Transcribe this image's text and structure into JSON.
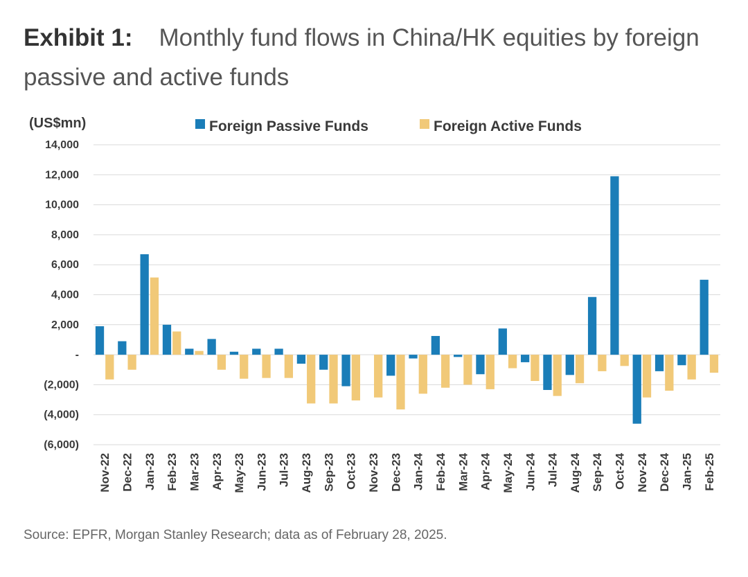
{
  "header": {
    "exhibit_label": "Exhibit 1:",
    "title": "Monthly fund flows in China/HK equities by foreign passive and active funds"
  },
  "source": "Source: EPFR, Morgan Stanley Research; data as of February 28, 2025.",
  "colors": {
    "passive": "#1a7db8",
    "active": "#f1c978",
    "grid": "#d9d9d9"
  },
  "chart_data": {
    "type": "bar",
    "unit_label": "(US$mn)",
    "categories": [
      "Nov-22",
      "Dec-22",
      "Jan-23",
      "Feb-23",
      "Mar-23",
      "Apr-23",
      "May-23",
      "Jun-23",
      "Jul-23",
      "Aug-23",
      "Sep-23",
      "Oct-23",
      "Nov-23",
      "Dec-23",
      "Jan-24",
      "Feb-24",
      "Mar-24",
      "Apr-24",
      "May-24",
      "Jun-24",
      "Jul-24",
      "Aug-24",
      "Sep-24",
      "Oct-24",
      "Nov-24",
      "Dec-24",
      "Jan-25",
      "Feb-25"
    ],
    "series": [
      {
        "name": "Foreign Passive Funds",
        "values": [
          1900,
          900,
          6700,
          2000,
          400,
          1050,
          200,
          400,
          400,
          -600,
          -1000,
          -2100,
          0,
          -1400,
          -250,
          1250,
          -150,
          -1300,
          1750,
          -500,
          -2350,
          -1350,
          3850,
          11900,
          -4600,
          -1100,
          -700,
          5000
        ]
      },
      {
        "name": "Foreign Active Funds",
        "values": [
          -1650,
          -1000,
          5150,
          1550,
          250,
          -1000,
          -1600,
          -1550,
          -1550,
          -3250,
          -3250,
          -3050,
          -2850,
          -3650,
          -2600,
          -2200,
          -2000,
          -2300,
          -900,
          -1750,
          -2750,
          -1900,
          -1100,
          -750,
          -2850,
          -2400,
          -1650,
          -1200
        ]
      }
    ],
    "ylim": [
      -6000,
      14000
    ],
    "yticks": [
      14000,
      12000,
      10000,
      8000,
      6000,
      4000,
      2000,
      0,
      -2000,
      -4000,
      -6000
    ],
    "ytick_labels": [
      "14,000",
      "12,000",
      "10,000",
      "8,000",
      "6,000",
      "4,000",
      "2,000",
      "-",
      "(2,000)",
      "(4,000)",
      "(6,000)"
    ],
    "grid": true,
    "legend_position": "top"
  }
}
